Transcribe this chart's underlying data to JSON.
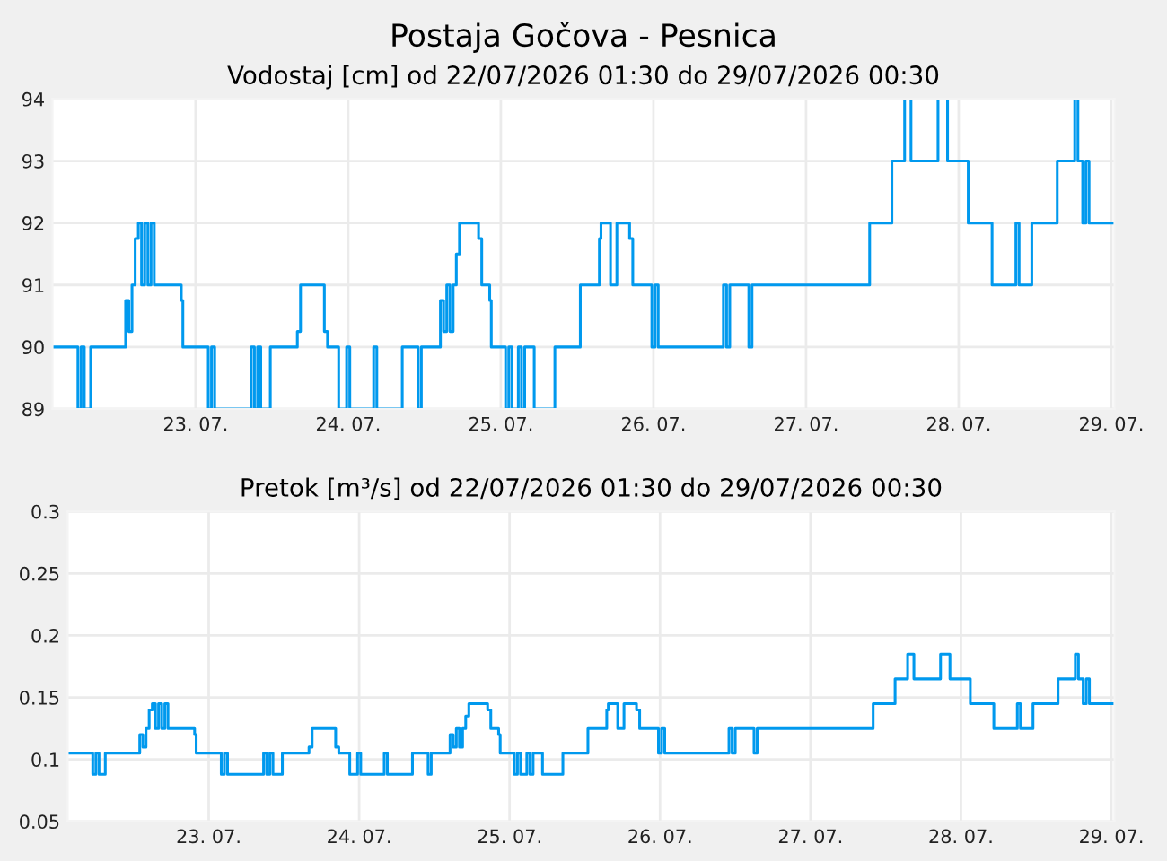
{
  "chart_data": [
    {
      "type": "step",
      "title": "Postaja Gočova - Pesnica",
      "subtitle": "Vodostaj [cm] od 22/07/2026 01:30 do 29/07/2026 00:30",
      "x": [
        "2026-07-22T01:30",
        "2026-07-22T05:30",
        "2026-07-22T06:00",
        "2026-07-22T06:30",
        "2026-07-22T07:30",
        "2026-07-22T13:00",
        "2026-07-22T13:30",
        "2026-07-22T14:00",
        "2026-07-22T14:30",
        "2026-07-22T15:00",
        "2026-07-22T15:30",
        "2026-07-22T16:00",
        "2026-07-22T16:30",
        "2026-07-22T17:00",
        "2026-07-22T17:30",
        "2026-07-22T21:45",
        "2026-07-22T22:00",
        "2026-07-23T02:00",
        "2026-07-23T02:30",
        "2026-07-23T03:00",
        "2026-07-23T08:45",
        "2026-07-23T09:15",
        "2026-07-23T09:45",
        "2026-07-23T10:15",
        "2026-07-23T11:45",
        "2026-07-23T16:00",
        "2026-07-23T16:30",
        "2026-07-23T20:15",
        "2026-07-23T20:45",
        "2026-07-23T22:30",
        "2026-07-23T23:45",
        "2026-07-24T00:15",
        "2026-07-24T04:00",
        "2026-07-24T04:30",
        "2026-07-24T08:30",
        "2026-07-24T11:00",
        "2026-07-24T11:30",
        "2026-07-24T14:30",
        "2026-07-24T15:00",
        "2026-07-24T15:30",
        "2026-07-24T16:00",
        "2026-07-24T16:30",
        "2026-07-24T17:00",
        "2026-07-24T17:30",
        "2026-07-24T20:30",
        "2026-07-24T21:00",
        "2026-07-24T22:15",
        "2026-07-24T22:30",
        "2026-07-25T00:45",
        "2026-07-25T01:15",
        "2026-07-25T01:45",
        "2026-07-25T02:45",
        "2026-07-25T03:15",
        "2026-07-25T03:45",
        "2026-07-25T05:15",
        "2026-07-25T08:30",
        "2026-07-25T12:30",
        "2026-07-25T15:30",
        "2026-07-25T15:45",
        "2026-07-25T17:15",
        "2026-07-25T18:15",
        "2026-07-25T20:15",
        "2026-07-25T20:45",
        "2026-07-25T23:45",
        "2026-07-26T00:15",
        "2026-07-26T00:45",
        "2026-07-26T11:00",
        "2026-07-26T11:30",
        "2026-07-26T12:00",
        "2026-07-26T15:00",
        "2026-07-26T15:30",
        "2026-07-27T10:00",
        "2026-07-27T13:30",
        "2026-07-27T15:30",
        "2026-07-27T16:30",
        "2026-07-27T20:45",
        "2026-07-27T22:15",
        "2026-07-28T01:30",
        "2026-07-28T05:15",
        "2026-07-28T09:00",
        "2026-07-28T09:30",
        "2026-07-28T11:30",
        "2026-07-28T15:30",
        "2026-07-28T18:15",
        "2026-07-28T18:45",
        "2026-07-28T19:30",
        "2026-07-28T20:00",
        "2026-07-28T20:30",
        "2026-07-29T00:30"
      ],
      "series": [
        {
          "color": "#0099ee",
          "values": [
            90,
            89,
            90,
            89,
            90,
            90.75,
            90.25,
            91,
            91.75,
            92,
            91,
            92,
            91,
            92,
            91,
            90.75,
            90,
            89,
            90,
            89,
            90,
            89,
            90,
            89,
            90,
            90.25,
            91,
            90.25,
            90,
            89,
            90,
            89,
            90,
            89,
            90,
            89,
            90,
            90.75,
            90.25,
            91,
            90.25,
            91,
            91.5,
            92,
            91.75,
            91,
            90.75,
            90,
            89,
            90,
            89,
            90,
            89,
            90,
            89,
            90,
            91,
            91.75,
            92,
            91,
            92,
            91.75,
            91,
            90,
            91,
            90,
            91,
            90,
            91,
            90,
            91,
            92,
            93,
            94,
            93,
            94,
            93,
            92,
            91,
            92,
            91,
            92,
            93,
            94,
            93,
            92,
            93,
            92,
            92
          ]
        }
      ],
      "xlim": [
        "2026-07-22T01:30",
        "2026-07-29T00:30"
      ],
      "xticks": [
        {
          "value": "2026-07-23",
          "label": "23. 07."
        },
        {
          "value": "2026-07-24",
          "label": "24. 07."
        },
        {
          "value": "2026-07-25",
          "label": "25. 07."
        },
        {
          "value": "2026-07-26",
          "label": "26. 07."
        },
        {
          "value": "2026-07-27",
          "label": "27. 07."
        },
        {
          "value": "2026-07-28",
          "label": "28. 07."
        },
        {
          "value": "2026-07-29",
          "label": "29. 07."
        }
      ],
      "ylim": [
        89,
        94
      ],
      "yticks": [
        89,
        90,
        91,
        92,
        93,
        94
      ],
      "grid": true,
      "legend": false
    },
    {
      "type": "step",
      "title": "Pretok [m³/s] od 22/07/2026 01:30 do 29/07/2026 00:30",
      "x": [
        "2026-07-22T01:30",
        "2026-07-22T05:30",
        "2026-07-22T06:00",
        "2026-07-22T06:30",
        "2026-07-22T07:30",
        "2026-07-22T13:00",
        "2026-07-22T13:30",
        "2026-07-22T14:00",
        "2026-07-22T14:30",
        "2026-07-22T15:00",
        "2026-07-22T15:30",
        "2026-07-22T16:00",
        "2026-07-22T16:30",
        "2026-07-22T17:00",
        "2026-07-22T17:30",
        "2026-07-22T21:45",
        "2026-07-22T22:00",
        "2026-07-23T02:00",
        "2026-07-23T02:30",
        "2026-07-23T03:00",
        "2026-07-23T08:45",
        "2026-07-23T09:15",
        "2026-07-23T09:45",
        "2026-07-23T10:15",
        "2026-07-23T11:45",
        "2026-07-23T16:00",
        "2026-07-23T16:30",
        "2026-07-23T20:15",
        "2026-07-23T20:45",
        "2026-07-23T22:30",
        "2026-07-23T23:45",
        "2026-07-24T00:15",
        "2026-07-24T04:00",
        "2026-07-24T04:30",
        "2026-07-24T08:30",
        "2026-07-24T11:00",
        "2026-07-24T11:30",
        "2026-07-24T14:30",
        "2026-07-24T15:00",
        "2026-07-24T15:30",
        "2026-07-24T16:00",
        "2026-07-24T16:30",
        "2026-07-24T17:00",
        "2026-07-24T17:30",
        "2026-07-24T20:30",
        "2026-07-24T21:00",
        "2026-07-24T22:15",
        "2026-07-24T22:30",
        "2026-07-25T00:45",
        "2026-07-25T01:15",
        "2026-07-25T01:45",
        "2026-07-25T02:45",
        "2026-07-25T03:15",
        "2026-07-25T03:45",
        "2026-07-25T05:15",
        "2026-07-25T08:30",
        "2026-07-25T12:30",
        "2026-07-25T15:30",
        "2026-07-25T15:45",
        "2026-07-25T17:15",
        "2026-07-25T18:15",
        "2026-07-25T20:15",
        "2026-07-25T20:45",
        "2026-07-25T23:45",
        "2026-07-26T00:15",
        "2026-07-26T00:45",
        "2026-07-26T11:00",
        "2026-07-26T11:30",
        "2026-07-26T12:00",
        "2026-07-26T15:00",
        "2026-07-26T15:30",
        "2026-07-27T10:00",
        "2026-07-27T13:30",
        "2026-07-27T15:30",
        "2026-07-27T16:30",
        "2026-07-27T20:45",
        "2026-07-27T22:15",
        "2026-07-28T01:30",
        "2026-07-28T05:15",
        "2026-07-28T09:00",
        "2026-07-28T09:30",
        "2026-07-28T11:30",
        "2026-07-28T15:30",
        "2026-07-28T18:15",
        "2026-07-28T18:45",
        "2026-07-28T19:30",
        "2026-07-28T20:00",
        "2026-07-28T20:30",
        "2026-07-29T00:30"
      ],
      "series": [
        {
          "color": "#0099ee",
          "values": [
            0.105,
            0.088,
            0.105,
            0.088,
            0.105,
            0.12,
            0.11,
            0.125,
            0.14,
            0.145,
            0.125,
            0.145,
            0.125,
            0.145,
            0.125,
            0.12,
            0.105,
            0.088,
            0.105,
            0.088,
            0.105,
            0.088,
            0.105,
            0.088,
            0.105,
            0.11,
            0.125,
            0.11,
            0.105,
            0.088,
            0.105,
            0.088,
            0.105,
            0.088,
            0.105,
            0.088,
            0.105,
            0.12,
            0.11,
            0.125,
            0.11,
            0.125,
            0.135,
            0.145,
            0.14,
            0.125,
            0.12,
            0.105,
            0.088,
            0.105,
            0.088,
            0.105,
            0.088,
            0.105,
            0.088,
            0.105,
            0.125,
            0.14,
            0.145,
            0.125,
            0.145,
            0.14,
            0.125,
            0.105,
            0.125,
            0.105,
            0.125,
            0.105,
            0.125,
            0.105,
            0.125,
            0.145,
            0.165,
            0.185,
            0.165,
            0.185,
            0.165,
            0.145,
            0.125,
            0.145,
            0.125,
            0.145,
            0.165,
            0.185,
            0.165,
            0.145,
            0.165,
            0.145,
            0.145
          ]
        }
      ],
      "xlim": [
        "2026-07-22T01:30",
        "2026-07-29T00:30"
      ],
      "xticks": [
        {
          "value": "2026-07-23",
          "label": "23. 07."
        },
        {
          "value": "2026-07-24",
          "label": "24. 07."
        },
        {
          "value": "2026-07-25",
          "label": "25. 07."
        },
        {
          "value": "2026-07-26",
          "label": "26. 07."
        },
        {
          "value": "2026-07-27",
          "label": "27. 07."
        },
        {
          "value": "2026-07-28",
          "label": "28. 07."
        },
        {
          "value": "2026-07-29",
          "label": "29. 07."
        }
      ],
      "ylim": [
        0.05,
        0.3
      ],
      "yticks": [
        0.05,
        0.1,
        0.15,
        0.2,
        0.25,
        0.3
      ],
      "grid": true,
      "legend": false
    }
  ]
}
